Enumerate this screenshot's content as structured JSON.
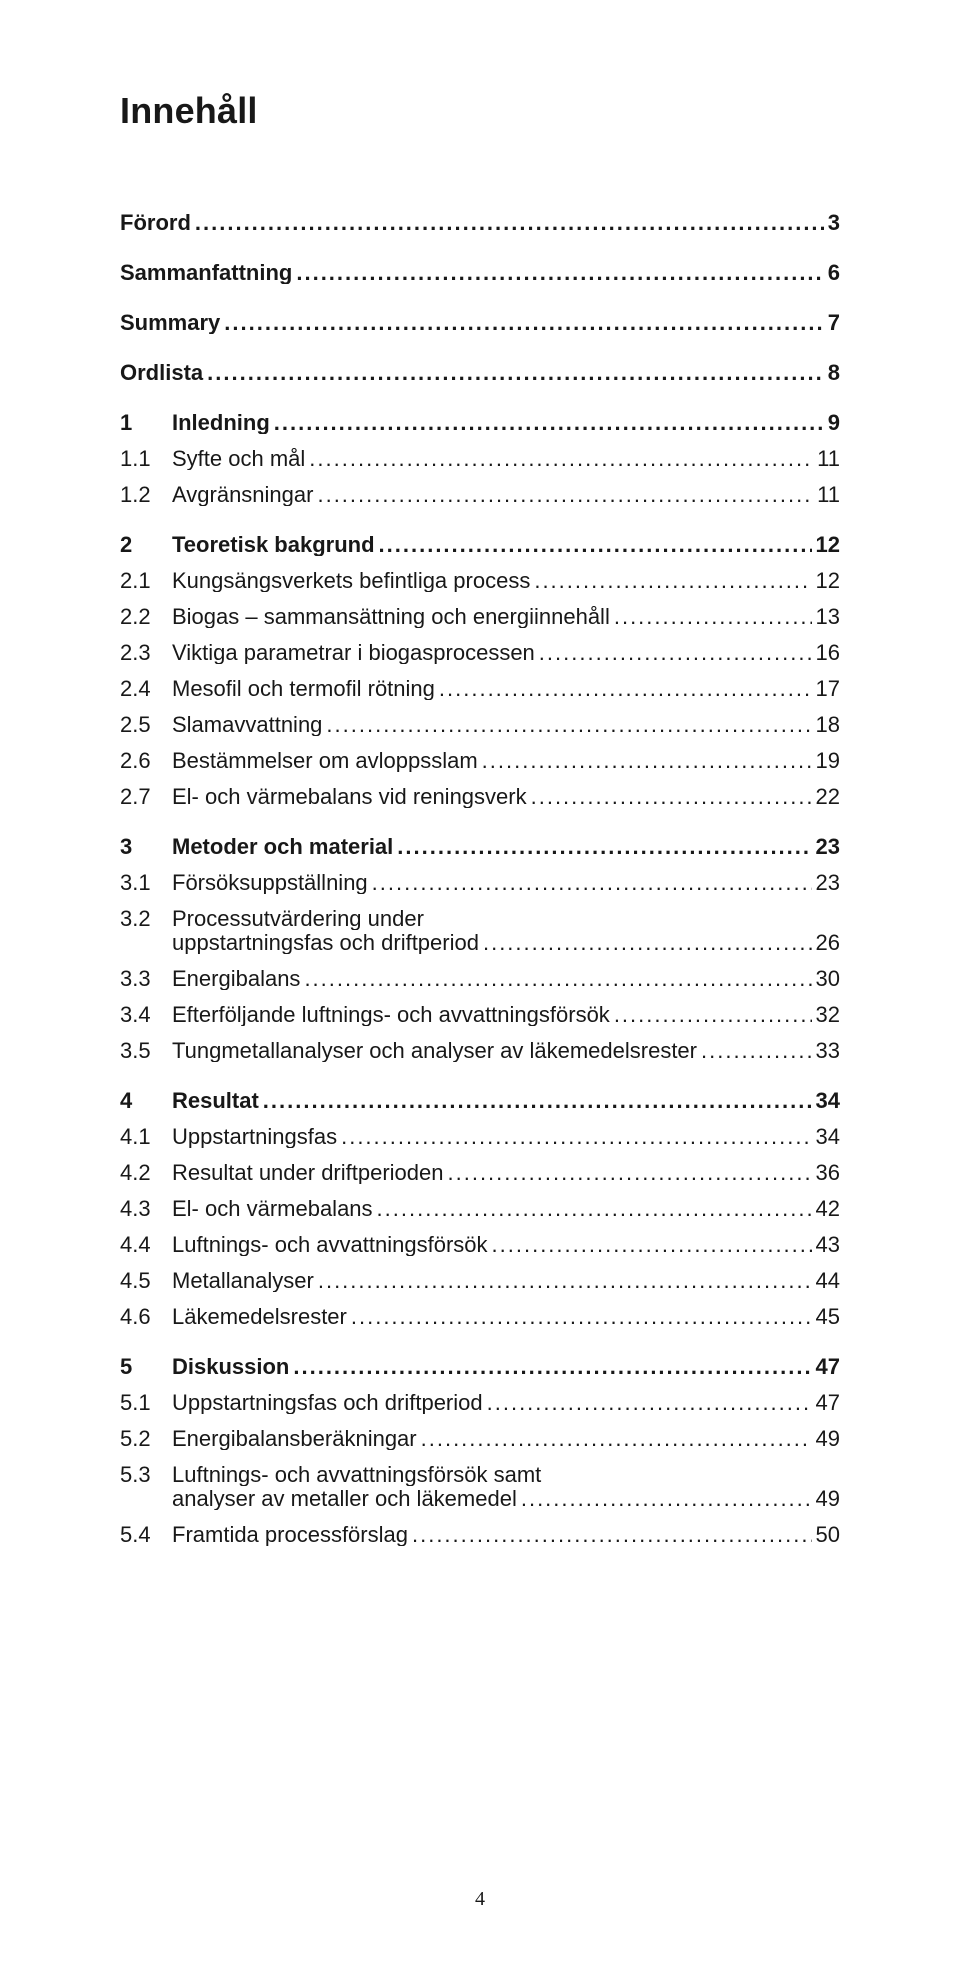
{
  "title": "Innehåll",
  "page_number": "4",
  "style": {
    "page_bg": "#ffffff",
    "text_color": "#181818",
    "title_fontsize": 36,
    "body_fontsize": 22,
    "font_family": "Avenir / Futura / Century Gothic"
  },
  "toc": [
    {
      "level": 0,
      "num": "",
      "label": "Förord",
      "page": "3",
      "gap_after": true
    },
    {
      "level": 0,
      "num": "",
      "label": "Sammanfattning",
      "page": "6",
      "gap_after": true
    },
    {
      "level": 0,
      "num": "",
      "label": "Summary",
      "page": "7",
      "gap_after": true
    },
    {
      "level": 0,
      "num": "",
      "label": "Ordlista",
      "page": "8",
      "gap_after": true
    },
    {
      "level": 1,
      "num": "1",
      "label": "Inledning",
      "page": "9"
    },
    {
      "level": 2,
      "num": "1.1",
      "label": "Syfte och mål",
      "page": "11"
    },
    {
      "level": 2,
      "num": "1.2",
      "label": "Avgränsningar",
      "page": "11",
      "gap_after": true
    },
    {
      "level": 1,
      "num": "2",
      "label": "Teoretisk bakgrund",
      "page": "12"
    },
    {
      "level": 2,
      "num": "2.1",
      "label": "Kungsängsverkets befintliga process",
      "page": "12"
    },
    {
      "level": 2,
      "num": "2.2",
      "label": "Biogas – sammansättning och energiinnehåll",
      "page": "13"
    },
    {
      "level": 2,
      "num": "2.3",
      "label": "Viktiga parametrar i biogasprocessen",
      "page": "16"
    },
    {
      "level": 2,
      "num": "2.4",
      "label": "Mesofil och termofil rötning",
      "page": "17"
    },
    {
      "level": 2,
      "num": "2.5",
      "label": "Slamavvattning",
      "page": "18"
    },
    {
      "level": 2,
      "num": "2.6",
      "label": "Bestämmelser om avloppsslam",
      "page": "19"
    },
    {
      "level": 2,
      "num": "2.7",
      "label": "El- och värmebalans vid reningsverk",
      "page": "22",
      "gap_after": true
    },
    {
      "level": 1,
      "num": "3",
      "label": "Metoder och material",
      "page": "23"
    },
    {
      "level": 2,
      "num": "3.1",
      "label": "Försöksuppställning",
      "page": "23"
    },
    {
      "level": 2,
      "num": "3.2",
      "label": "Processutvärdering under",
      "label2": "uppstartningsfas och driftperiod",
      "page": "26",
      "wrap": true
    },
    {
      "level": 2,
      "num": "3.3",
      "label": "Energibalans",
      "page": "30"
    },
    {
      "level": 2,
      "num": "3.4",
      "label": "Efterföljande luftnings- och avvattningsförsök",
      "page": "32"
    },
    {
      "level": 2,
      "num": "3.5",
      "label": "Tungmetallanalyser och analyser av läkemedelsrester",
      "page": "33",
      "gap_after": true
    },
    {
      "level": 1,
      "num": "4",
      "label": "Resultat",
      "page": "34"
    },
    {
      "level": 2,
      "num": "4.1",
      "label": "Uppstartningsfas",
      "page": "34"
    },
    {
      "level": 2,
      "num": "4.2",
      "label": "Resultat under driftperioden",
      "page": "36"
    },
    {
      "level": 2,
      "num": "4.3",
      "label": "El- och värmebalans",
      "page": "42"
    },
    {
      "level": 2,
      "num": "4.4",
      "label": "Luftnings- och avvattningsförsök",
      "page": "43"
    },
    {
      "level": 2,
      "num": "4.5",
      "label": "Metallanalyser",
      "page": "44"
    },
    {
      "level": 2,
      "num": "4.6",
      "label": "Läkemedelsrester",
      "page": "45",
      "gap_after": true
    },
    {
      "level": 1,
      "num": "5",
      "label": "Diskussion",
      "page": "47"
    },
    {
      "level": 2,
      "num": "5.1",
      "label": "Uppstartningsfas och driftperiod",
      "page": "47"
    },
    {
      "level": 2,
      "num": "5.2",
      "label": "Energibalansberäkningar",
      "page": "49"
    },
    {
      "level": 2,
      "num": "5.3",
      "label": "Luftnings- och avvattningsförsök samt",
      "label2": "analyser av metaller och läkemedel",
      "page": "49",
      "wrap": true
    },
    {
      "level": 2,
      "num": "5.4",
      "label": "Framtida processförslag",
      "page": "50"
    }
  ]
}
